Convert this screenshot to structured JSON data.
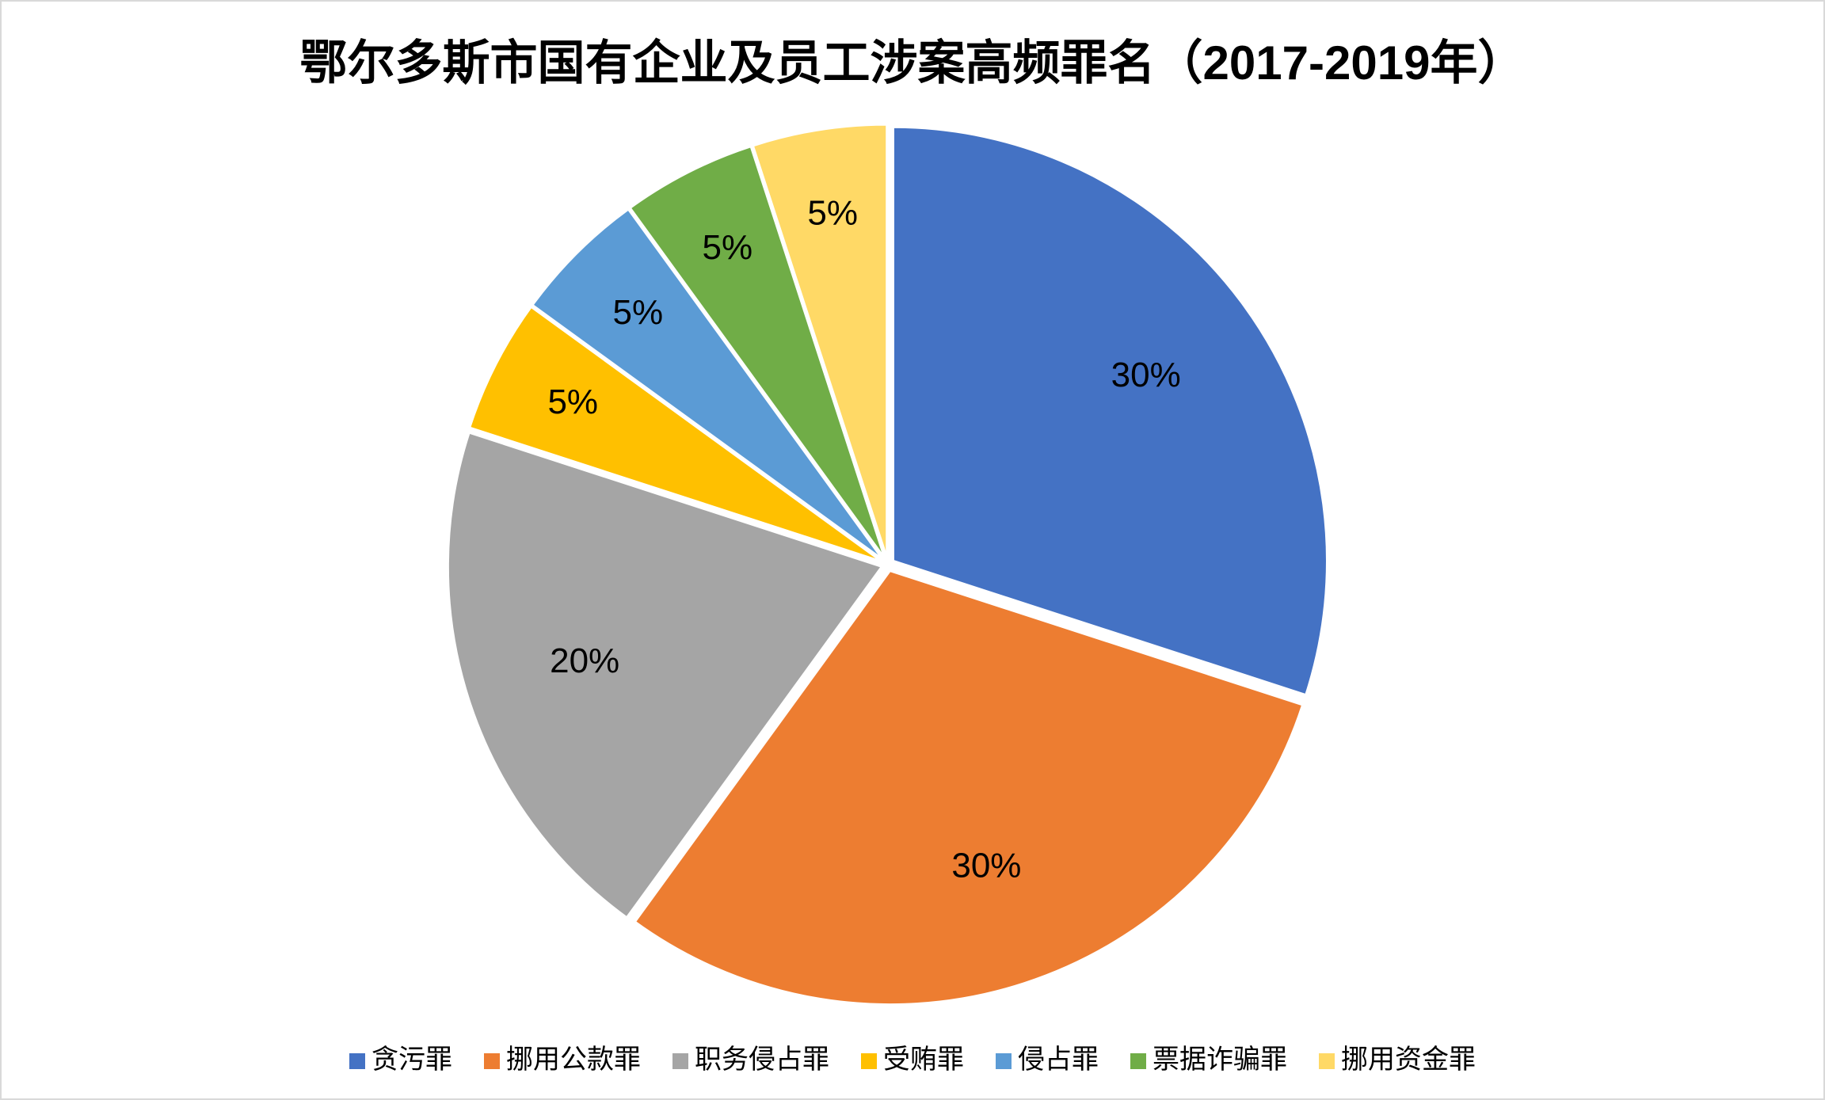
{
  "chart_data": {
    "type": "pie",
    "title": "鄂尔多斯市国有企业及员工涉案高频罪名（2017-2019年）",
    "categories": [
      "贪污罪",
      "挪用公款罪",
      "职务侵占罪",
      "受贿罪",
      "侵占罪",
      "票据诈骗罪",
      "挪用资金罪"
    ],
    "values": [
      30,
      30,
      20,
      5,
      5,
      5,
      5
    ],
    "value_labels": [
      "30%",
      "30%",
      "20%",
      "5%",
      "5%",
      "5%",
      "5%"
    ],
    "colors": [
      "#4472c4",
      "#ed7d31",
      "#a5a5a5",
      "#ffc000",
      "#5b9bd5",
      "#70ad47",
      "#ffd966"
    ],
    "legend": "bottom"
  }
}
